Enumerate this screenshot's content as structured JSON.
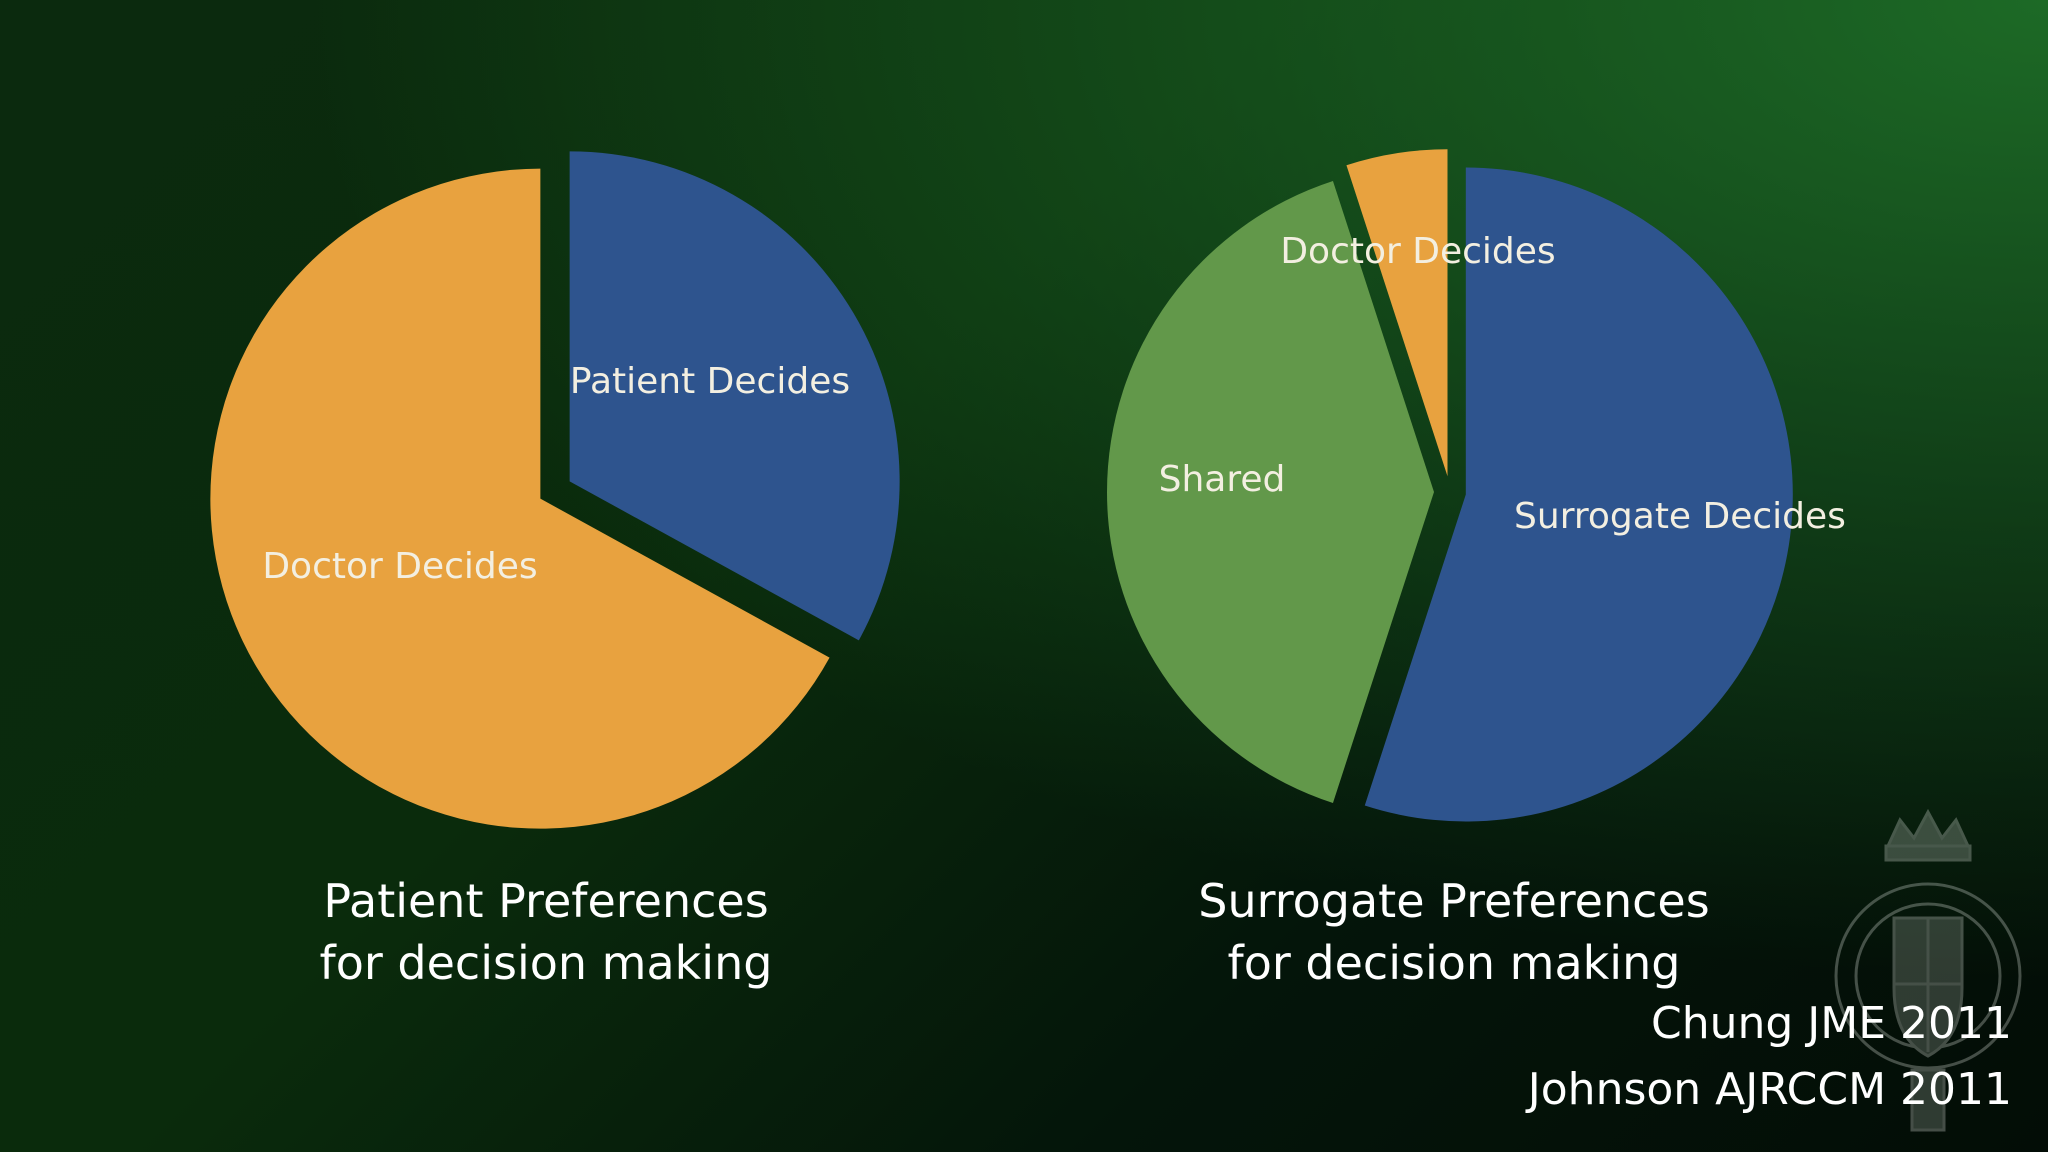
{
  "chart_data": [
    {
      "type": "pie",
      "title": "Patient Preferences for decision making",
      "title_lines": [
        "Patient Preferences",
        "for decision making"
      ],
      "slices": [
        {
          "label": "Patient Decides",
          "value": 33,
          "color": "#2e548e"
        },
        {
          "label": "Doctor Decides",
          "value": 67,
          "color": "#e8a23f"
        }
      ]
    },
    {
      "type": "pie",
      "title": "Surrogate Preferences for decision making",
      "title_lines": [
        "Surrogate Preferences",
        "for decision making"
      ],
      "slices": [
        {
          "label": "Surrogate Decides",
          "value": 55,
          "color": "#2e548e"
        },
        {
          "label": "Shared",
          "value": 40,
          "color": "#62984a"
        },
        {
          "label": "Doctor Decides",
          "value": 5,
          "color": "#e8a23f"
        }
      ]
    }
  ],
  "citations": [
    "Chung JME 2011",
    "Johnson AJRCCM 2011"
  ],
  "colors": {
    "background": "#0a2b0c",
    "background_accent": "#1d6a26",
    "text": "#ffffff",
    "slice_label": "#f3efe1"
  },
  "icons": {
    "crest": "hospital-crest-watermark"
  }
}
